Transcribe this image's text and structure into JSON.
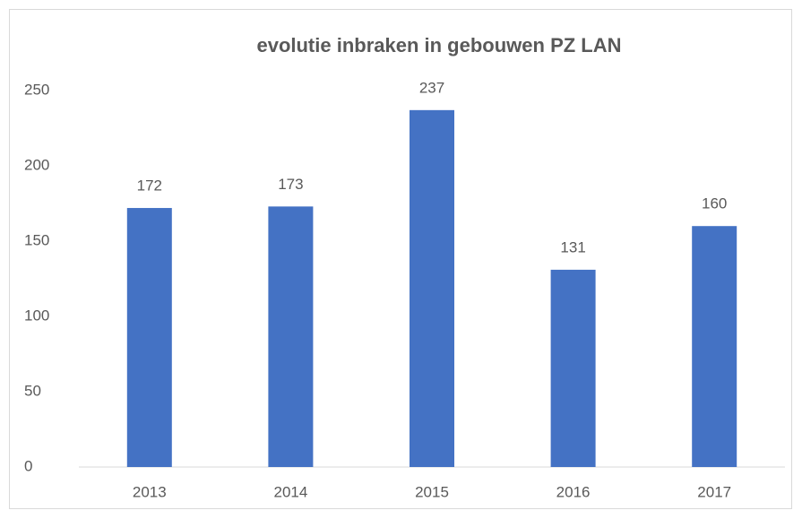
{
  "chart_data": {
    "type": "bar",
    "title": "evolutie inbraken in gebouwen PZ LAN",
    "categories": [
      "2013",
      "2014",
      "2015",
      "2016",
      "2017"
    ],
    "values": [
      172,
      173,
      237,
      131,
      160
    ],
    "color": "#4472c4",
    "ylim": [
      0,
      250
    ],
    "yticks": [
      0,
      50,
      100,
      150,
      200,
      250
    ],
    "grid": false
  }
}
